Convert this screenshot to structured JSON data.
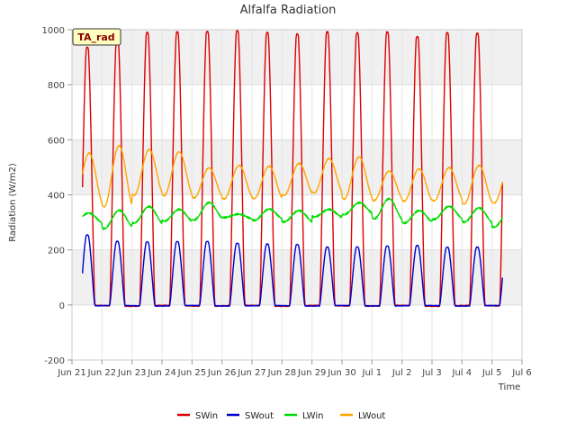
{
  "chart_data": {
    "type": "line",
    "title": "Alfalfa Radiation",
    "xlabel": "Time",
    "ylabel": "Radiation (W/m2)",
    "ylim": [
      -200,
      1000
    ],
    "xlim": [
      "2019-06-21",
      "2019-07-06"
    ],
    "y_ticks": [
      "-200",
      "0",
      "200",
      "400",
      "600",
      "800",
      "1000"
    ],
    "x_ticks": [
      "Jun 21",
      "Jun 22",
      "Jun 23",
      "Jun 24",
      "Jun 25",
      "Jun 26",
      "Jun 27",
      "Jun 28",
      "Jun 29",
      "Jun 30",
      "Jul 1",
      "Jul 2",
      "Jul 3",
      "Jul 4",
      "Jul 5",
      "Jul 6"
    ],
    "grid": true,
    "legend_position": "bottom",
    "annotation": "TA_rad",
    "days": [
      "Jun 21",
      "Jun 22",
      "Jun 23",
      "Jun 24",
      "Jun 25",
      "Jun 26",
      "Jun 27",
      "Jun 28",
      "Jun 29",
      "Jun 30",
      "Jul 1",
      "Jul 2",
      "Jul 3",
      "Jul 4",
      "Jul 5"
    ],
    "series": [
      {
        "name": "SWin",
        "color": "#dd0000",
        "daily_peak": [
          935,
          975,
          990,
          990,
          995,
          995,
          990,
          985,
          990,
          990,
          990,
          975,
          990,
          985,
          975
        ]
      },
      {
        "name": "SWout",
        "color": "#0000cc",
        "daily_peak": [
          255,
          230,
          230,
          230,
          230,
          225,
          220,
          220,
          210,
          210,
          215,
          215,
          210,
          210,
          215
        ]
      },
      {
        "name": "LWin",
        "color": "#00dd00",
        "daily_peak": [
          335,
          345,
          355,
          350,
          370,
          330,
          350,
          340,
          350,
          370,
          385,
          345,
          355,
          355,
          340
        ],
        "night_low": [
          300,
          280,
          295,
          305,
          310,
          315,
          310,
          300,
          320,
          330,
          310,
          300,
          310,
          300,
          285
        ]
      },
      {
        "name": "LWout",
        "color": "#ffa500",
        "daily_peak": [
          550,
          580,
          565,
          555,
          500,
          505,
          505,
          515,
          530,
          540,
          485,
          495,
          500,
          505,
          500
        ],
        "night_low": [
          360,
          355,
          400,
          395,
          390,
          385,
          385,
          400,
          405,
          385,
          380,
          375,
          380,
          365,
          370
        ]
      }
    ]
  }
}
